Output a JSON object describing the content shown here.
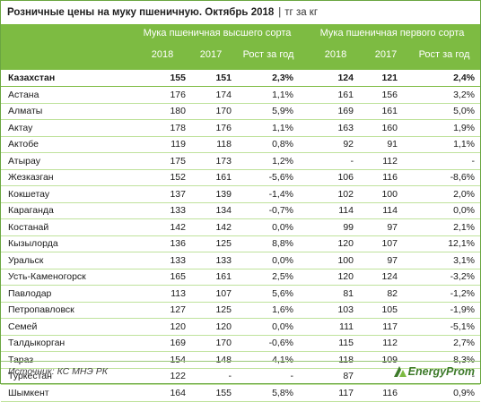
{
  "title": "Розничные цены на муку пшеничную. Октябрь 2018",
  "separator": "|",
  "unit": "тг за кг",
  "group1": "Мука пшеничная высшего сорта",
  "group2": "Мука пшеничная первого сорта",
  "subheaders": [
    "2018",
    "2017",
    "Рост за год",
    "2018",
    "2017",
    "Рост за год"
  ],
  "rows": [
    {
      "name": "Казахстан",
      "v": [
        "155",
        "151",
        "2,3%",
        "124",
        "121",
        "2,4%"
      ]
    },
    {
      "name": "Астана",
      "v": [
        "176",
        "174",
        "1,1%",
        "161",
        "156",
        "3,2%"
      ]
    },
    {
      "name": "Алматы",
      "v": [
        "180",
        "170",
        "5,9%",
        "169",
        "161",
        "5,0%"
      ]
    },
    {
      "name": "Актау",
      "v": [
        "178",
        "176",
        "1,1%",
        "163",
        "160",
        "1,9%"
      ]
    },
    {
      "name": "Актобе",
      "v": [
        "119",
        "118",
        "0,8%",
        "92",
        "91",
        "1,1%"
      ]
    },
    {
      "name": "Атырау",
      "v": [
        "175",
        "173",
        "1,2%",
        "-",
        "112",
        "-"
      ]
    },
    {
      "name": "Жезказган",
      "v": [
        "152",
        "161",
        "-5,6%",
        "106",
        "116",
        "-8,6%"
      ]
    },
    {
      "name": "Кокшетау",
      "v": [
        "137",
        "139",
        "-1,4%",
        "102",
        "100",
        "2,0%"
      ]
    },
    {
      "name": "Караганда",
      "v": [
        "133",
        "134",
        "-0,7%",
        "114",
        "114",
        "0,0%"
      ]
    },
    {
      "name": "Костанай",
      "v": [
        "142",
        "142",
        "0,0%",
        "99",
        "97",
        "2,1%"
      ]
    },
    {
      "name": "Кызылорда",
      "v": [
        "136",
        "125",
        "8,8%",
        "120",
        "107",
        "12,1%"
      ]
    },
    {
      "name": "Уральск",
      "v": [
        "133",
        "133",
        "0,0%",
        "100",
        "97",
        "3,1%"
      ]
    },
    {
      "name": "Усть-Каменогорск",
      "v": [
        "165",
        "161",
        "2,5%",
        "120",
        "124",
        "-3,2%"
      ]
    },
    {
      "name": "Павлодар",
      "v": [
        "113",
        "107",
        "5,6%",
        "81",
        "82",
        "-1,2%"
      ]
    },
    {
      "name": "Петропавловск",
      "v": [
        "127",
        "125",
        "1,6%",
        "103",
        "105",
        "-1,9%"
      ]
    },
    {
      "name": "Семей",
      "v": [
        "120",
        "120",
        "0,0%",
        "111",
        "117",
        "-5,1%"
      ]
    },
    {
      "name": "Талдыкорган",
      "v": [
        "169",
        "170",
        "-0,6%",
        "115",
        "112",
        "2,7%"
      ]
    },
    {
      "name": "Тараз",
      "v": [
        "154",
        "148",
        "4,1%",
        "118",
        "109",
        "8,3%"
      ]
    },
    {
      "name": "Туркестан",
      "v": [
        "122",
        "-",
        "-",
        "87",
        "-",
        "-"
      ]
    },
    {
      "name": "Шымкент",
      "v": [
        "164",
        "155",
        "5,8%",
        "117",
        "116",
        "0,9%"
      ]
    }
  ],
  "source": "Источник: КС МНЭ РК",
  "logo_text": "EnergyProm",
  "colors": {
    "header_bg": "#7dbb42",
    "row_line": "#bfe29c",
    "logo_green": "#3d7a2a"
  }
}
